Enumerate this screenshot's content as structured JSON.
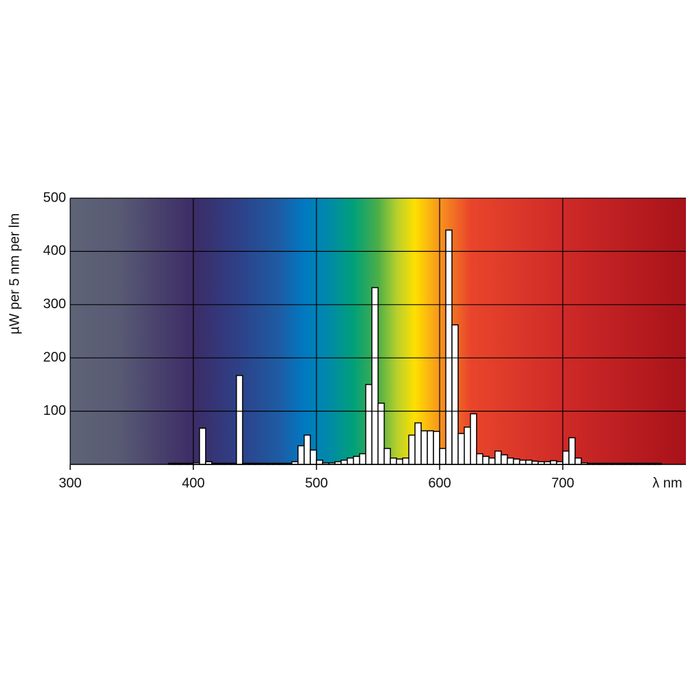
{
  "chart_data": {
    "type": "histogram",
    "y_label": "µW per 5 nm per lm",
    "x_label": "λ nm",
    "bins": [
      380,
      385,
      390,
      395,
      400,
      405,
      410,
      415,
      420,
      425,
      430,
      435,
      440,
      445,
      450,
      455,
      460,
      465,
      470,
      475,
      480,
      485,
      490,
      495,
      500,
      505,
      510,
      515,
      520,
      525,
      530,
      535,
      540,
      545,
      550,
      555,
      560,
      565,
      570,
      575,
      580,
      585,
      590,
      595,
      600,
      605,
      610,
      615,
      620,
      625,
      630,
      635,
      640,
      645,
      650,
      655,
      660,
      665,
      670,
      675,
      680,
      685,
      690,
      695,
      700,
      705,
      710,
      715,
      720,
      725,
      730,
      735,
      740,
      745,
      750,
      755,
      760,
      765,
      770,
      775,
      780
    ],
    "values": [
      2,
      2,
      2,
      2,
      3,
      68,
      5,
      2,
      2,
      2,
      2,
      167,
      2,
      2,
      2,
      2,
      2,
      2,
      2,
      2,
      5,
      35,
      55,
      27,
      8,
      3,
      3,
      5,
      8,
      12,
      15,
      20,
      150,
      332,
      115,
      30,
      12,
      10,
      12,
      55,
      78,
      63,
      63,
      62,
      30,
      440,
      262,
      58,
      70,
      95,
      20,
      15,
      12,
      25,
      18,
      12,
      10,
      8,
      8,
      6,
      5,
      5,
      7,
      5,
      25,
      50,
      12,
      3,
      2,
      2,
      2,
      2,
      2,
      2,
      2,
      2,
      2,
      2,
      2,
      2
    ],
    "color": "#ffffff",
    "xlim": [
      300,
      800
    ],
    "xticks": [
      300,
      400,
      500,
      600,
      700
    ],
    "ylim": [
      0,
      500
    ],
    "yticks": [
      100,
      200,
      300,
      400,
      500
    ],
    "grid": true
  }
}
